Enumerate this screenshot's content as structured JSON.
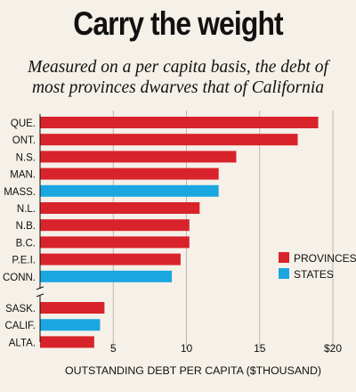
{
  "chart_data": {
    "type": "bar",
    "orientation": "horizontal",
    "title": "Carry the weight",
    "subtitle": "Measured on a per capita basis, the debt of most provinces dwarves that of California",
    "subtitle_lines": [
      "Measured on a per capita basis, the debt of",
      "most provinces dwarves that of California"
    ],
    "xlabel": "OUTSTANDING DEBT PER CAPITA ($THOUSAND)",
    "xlim": [
      0,
      20
    ],
    "ticks": [
      {
        "value": 5,
        "label": "5"
      },
      {
        "value": 10,
        "label": "10"
      },
      {
        "value": 15,
        "label": "15"
      },
      {
        "value": 20,
        "label": "$20"
      }
    ],
    "axis_break_after": "CONN.",
    "legend": [
      {
        "key": "province",
        "label": "PROVINCES",
        "color": "#d8232a"
      },
      {
        "key": "state",
        "label": "STATES",
        "color": "#1aa7e0"
      }
    ],
    "categories": [
      "QUE.",
      "ONT.",
      "N.S.",
      "MAN.",
      "MASS.",
      "N.L.",
      "N.B.",
      "B.C.",
      "P.E.I.",
      "CONN.",
      "SASK.",
      "CALIF.",
      "ALTA."
    ],
    "values": [
      19.0,
      17.6,
      13.4,
      12.2,
      12.2,
      10.9,
      10.2,
      10.2,
      9.6,
      9.0,
      4.4,
      4.1,
      3.7
    ],
    "groups": [
      "province",
      "province",
      "province",
      "province",
      "state",
      "province",
      "province",
      "province",
      "province",
      "state",
      "province",
      "state",
      "province"
    ]
  }
}
